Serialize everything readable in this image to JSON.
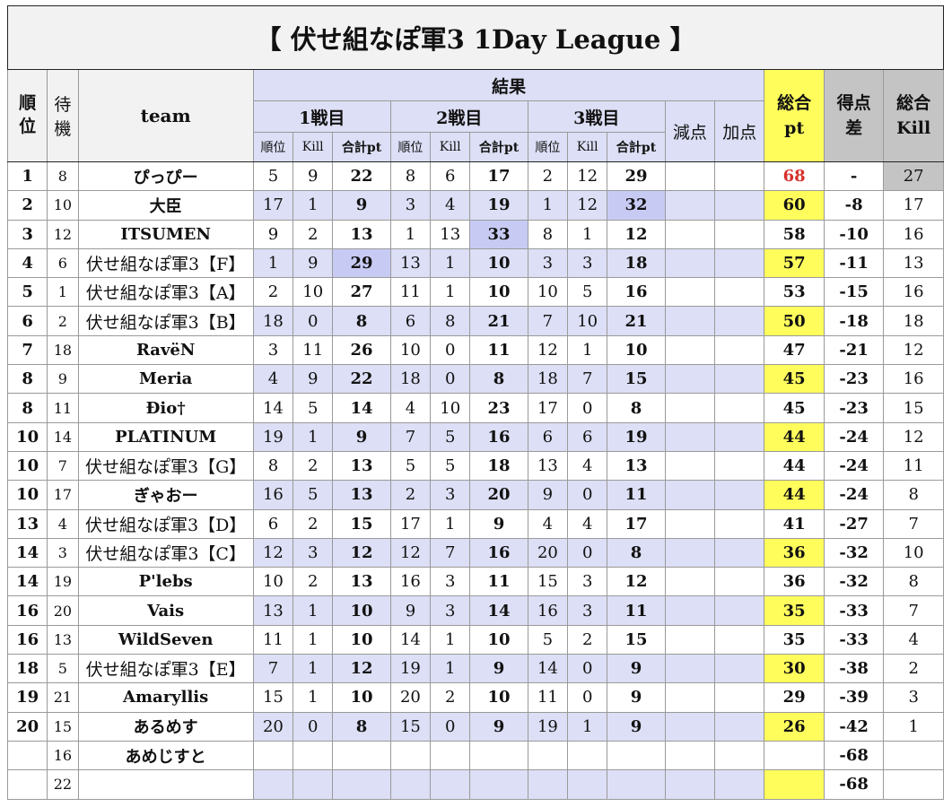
{
  "title": "【 伏せ組なぽ軍3 1Day League 】",
  "headers": {
    "rank": "順位",
    "wait": "待機",
    "team": "team",
    "results": "結果",
    "game1": "1戦目",
    "game2": "2戦目",
    "game3": "3戦目",
    "sub_rank": "順位",
    "sub_kill": "Kill",
    "sub_total": "合計pt",
    "penalty": "減点",
    "bonus": "加点",
    "total_pt": "総合\npt",
    "diff": "得点\n差",
    "total_kill": "総合\nKill"
  },
  "rows": [
    {
      "rank": "1",
      "wait": "8",
      "team": "ぴっぴー",
      "g1": [
        "5",
        "9",
        "22"
      ],
      "g2": [
        "8",
        "6",
        "17"
      ],
      "g3": [
        "2",
        "12",
        "29"
      ],
      "total": "68",
      "diff": "-",
      "kill": "27"
    },
    {
      "rank": "2",
      "wait": "10",
      "team": "大臣",
      "g1": [
        "17",
        "1",
        "9"
      ],
      "g2": [
        "3",
        "4",
        "19"
      ],
      "g3": [
        "1",
        "12",
        "32"
      ],
      "total": "60",
      "diff": "-8",
      "kill": "17"
    },
    {
      "rank": "3",
      "wait": "12",
      "team": "ITSUMEN",
      "g1": [
        "9",
        "2",
        "13"
      ],
      "g2": [
        "1",
        "13",
        "33"
      ],
      "g3": [
        "8",
        "1",
        "12"
      ],
      "total": "58",
      "diff": "-10",
      "kill": "16"
    },
    {
      "rank": "4",
      "wait": "6",
      "team": "伏せ組なぽ軍3【F】",
      "g1": [
        "1",
        "9",
        "29"
      ],
      "g2": [
        "13",
        "1",
        "10"
      ],
      "g3": [
        "3",
        "3",
        "18"
      ],
      "total": "57",
      "diff": "-11",
      "kill": "13"
    },
    {
      "rank": "5",
      "wait": "1",
      "team": "伏せ組なぽ軍3【A】",
      "g1": [
        "2",
        "10",
        "27"
      ],
      "g2": [
        "11",
        "1",
        "10"
      ],
      "g3": [
        "10",
        "5",
        "16"
      ],
      "total": "53",
      "diff": "-15",
      "kill": "16"
    },
    {
      "rank": "6",
      "wait": "2",
      "team": "伏せ組なぽ軍3【B】",
      "g1": [
        "18",
        "0",
        "8"
      ],
      "g2": [
        "6",
        "8",
        "21"
      ],
      "g3": [
        "7",
        "10",
        "21"
      ],
      "total": "50",
      "diff": "-18",
      "kill": "18"
    },
    {
      "rank": "7",
      "wait": "18",
      "team": "RavëN",
      "g1": [
        "3",
        "11",
        "26"
      ],
      "g2": [
        "10",
        "0",
        "11"
      ],
      "g3": [
        "12",
        "1",
        "10"
      ],
      "total": "47",
      "diff": "-21",
      "kill": "12"
    },
    {
      "rank": "8",
      "wait": "9",
      "team": "Meria",
      "g1": [
        "4",
        "9",
        "22"
      ],
      "g2": [
        "18",
        "0",
        "8"
      ],
      "g3": [
        "18",
        "7",
        "15"
      ],
      "total": "45",
      "diff": "-23",
      "kill": "16"
    },
    {
      "rank": "8",
      "wait": "11",
      "team": "Ðio†",
      "g1": [
        "14",
        "5",
        "14"
      ],
      "g2": [
        "4",
        "10",
        "23"
      ],
      "g3": [
        "17",
        "0",
        "8"
      ],
      "total": "45",
      "diff": "-23",
      "kill": "15"
    },
    {
      "rank": "10",
      "wait": "14",
      "team": "PLATINUM",
      "g1": [
        "19",
        "1",
        "9"
      ],
      "g2": [
        "7",
        "5",
        "16"
      ],
      "g3": [
        "6",
        "6",
        "19"
      ],
      "total": "44",
      "diff": "-24",
      "kill": "12"
    },
    {
      "rank": "10",
      "wait": "7",
      "team": "伏せ組なぽ軍3【G】",
      "g1": [
        "8",
        "2",
        "13"
      ],
      "g2": [
        "5",
        "5",
        "18"
      ],
      "g3": [
        "13",
        "4",
        "13"
      ],
      "total": "44",
      "diff": "-24",
      "kill": "11"
    },
    {
      "rank": "10",
      "wait": "17",
      "team": "ぎゃおー",
      "g1": [
        "16",
        "5",
        "13"
      ],
      "g2": [
        "2",
        "3",
        "20"
      ],
      "g3": [
        "9",
        "0",
        "11"
      ],
      "total": "44",
      "diff": "-24",
      "kill": "8"
    },
    {
      "rank": "13",
      "wait": "4",
      "team": "伏せ組なぽ軍3【D】",
      "g1": [
        "6",
        "2",
        "15"
      ],
      "g2": [
        "17",
        "1",
        "9"
      ],
      "g3": [
        "4",
        "4",
        "17"
      ],
      "total": "41",
      "diff": "-27",
      "kill": "7"
    },
    {
      "rank": "14",
      "wait": "3",
      "team": "伏せ組なぽ軍3【C】",
      "g1": [
        "12",
        "3",
        "12"
      ],
      "g2": [
        "12",
        "7",
        "16"
      ],
      "g3": [
        "20",
        "0",
        "8"
      ],
      "total": "36",
      "diff": "-32",
      "kill": "10"
    },
    {
      "rank": "14",
      "wait": "19",
      "team": "P'lebs",
      "g1": [
        "10",
        "2",
        "13"
      ],
      "g2": [
        "16",
        "3",
        "11"
      ],
      "g3": [
        "15",
        "3",
        "12"
      ],
      "total": "36",
      "diff": "-32",
      "kill": "8"
    },
    {
      "rank": "16",
      "wait": "20",
      "team": "Vais",
      "g1": [
        "13",
        "1",
        "10"
      ],
      "g2": [
        "9",
        "3",
        "14"
      ],
      "g3": [
        "16",
        "3",
        "11"
      ],
      "total": "35",
      "diff": "-33",
      "kill": "7"
    },
    {
      "rank": "16",
      "wait": "13",
      "team": "WildSeven",
      "g1": [
        "11",
        "1",
        "10"
      ],
      "g2": [
        "14",
        "1",
        "10"
      ],
      "g3": [
        "5",
        "2",
        "15"
      ],
      "total": "35",
      "diff": "-33",
      "kill": "4"
    },
    {
      "rank": "18",
      "wait": "5",
      "team": "伏せ組なぽ軍3【E】",
      "g1": [
        "7",
        "1",
        "12"
      ],
      "g2": [
        "19",
        "1",
        "9"
      ],
      "g3": [
        "14",
        "0",
        "9"
      ],
      "total": "30",
      "diff": "-38",
      "kill": "2"
    },
    {
      "rank": "19",
      "wait": "21",
      "team": "Amaryllis",
      "g1": [
        "15",
        "1",
        "10"
      ],
      "g2": [
        "20",
        "2",
        "10"
      ],
      "g3": [
        "11",
        "0",
        "9"
      ],
      "total": "29",
      "diff": "-39",
      "kill": "3"
    },
    {
      "rank": "20",
      "wait": "15",
      "team": "あるめす",
      "g1": [
        "20",
        "0",
        "8"
      ],
      "g2": [
        "15",
        "0",
        "9"
      ],
      "g3": [
        "19",
        "1",
        "9"
      ],
      "total": "26",
      "diff": "-42",
      "kill": "1"
    },
    {
      "rank": "",
      "wait": "16",
      "team": "あめじすと",
      "g1": [
        "",
        "",
        ""
      ],
      "g2": [
        "",
        "",
        ""
      ],
      "g3": [
        "",
        "",
        ""
      ],
      "total": "",
      "diff": "-68",
      "kill": ""
    },
    {
      "rank": "",
      "wait": "22",
      "team": "",
      "g1": [
        "",
        "",
        ""
      ],
      "g2": [
        "",
        "",
        ""
      ],
      "g3": [
        "",
        "",
        ""
      ],
      "total": "",
      "diff": "-68",
      "kill": ""
    }
  ],
  "colors": {
    "header_blue": "#dcdff5",
    "highlight_blue": "#c7cbf4",
    "yellow": "#fffd5c",
    "grey": "#c4c4c4",
    "first_place_red": "#d6302a"
  }
}
